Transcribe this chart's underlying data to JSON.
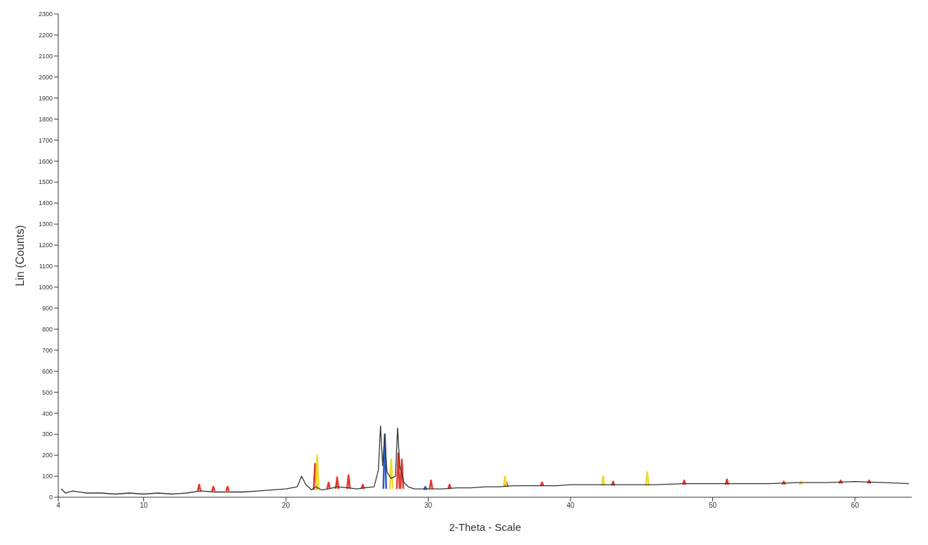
{
  "chart_data": {
    "type": "line",
    "xlabel": "2-Theta - Scale",
    "ylabel": "Lin (Counts)",
    "xlim": [
      4,
      64
    ],
    "ylim": [
      0,
      2300
    ],
    "xticks": [
      4,
      10,
      20,
      30,
      40,
      50,
      60
    ],
    "yticks": [
      0,
      100,
      200,
      300,
      400,
      500,
      600,
      700,
      800,
      900,
      1000,
      1100,
      1200,
      1300,
      1400,
      1500,
      1600,
      1700,
      1800,
      1900,
      2000,
      2100,
      2200,
      2300
    ],
    "grid": false,
    "legend": false,
    "marker": "none",
    "line_style": "solid",
    "series": [
      {
        "color": "#e8382c",
        "x": [
          13.8,
          13.9,
          14.0,
          14.05,
          14.8,
          14.9,
          15.0,
          15.05,
          15.8,
          15.9,
          16.0,
          16.05,
          21.95,
          22.05,
          22.15,
          22.2,
          22.9,
          23.0,
          23.1,
          23.15,
          23.5,
          23.6,
          23.7,
          23.75,
          24.3,
          24.4,
          24.5,
          24.55,
          25.3,
          25.4,
          25.5,
          25.55,
          27.8,
          27.9,
          28.0,
          28.02,
          28.05,
          28.15,
          28.25,
          28.3,
          30.1,
          30.2,
          30.3,
          30.35,
          31.4,
          31.5,
          31.6,
          31.65,
          35.4,
          35.5,
          35.6,
          35.65,
          37.9,
          38,
          38.1,
          38.15,
          42.9,
          43,
          43.1,
          43.15,
          47.9,
          48,
          48.1,
          48.15,
          50.9,
          51,
          51.1,
          51.15,
          54.9,
          55,
          55.1,
          55.15,
          58.9,
          59,
          59.1,
          59.15,
          60.9,
          61,
          61.1
        ],
        "values": [
          30,
          60,
          30,
          null,
          30,
          50,
          30,
          null,
          30,
          50,
          30,
          null,
          35,
          160,
          35,
          null,
          40,
          70,
          40,
          null,
          40,
          95,
          40,
          null,
          40,
          105,
          40,
          null,
          40,
          60,
          40,
          null,
          40,
          210,
          40,
          null,
          40,
          180,
          40,
          null,
          40,
          80,
          40,
          null,
          40,
          60,
          40,
          null,
          50,
          70,
          50,
          null,
          55,
          70,
          55,
          null,
          55,
          75,
          55,
          null,
          60,
          80,
          60,
          null,
          60,
          85,
          60,
          null,
          60,
          75,
          60,
          null,
          65,
          80,
          65,
          null,
          65,
          80,
          65
        ]
      },
      {
        "color": "#f2d82a",
        "x": [
          22.1,
          22.2,
          22.3,
          22.35,
          27.3,
          27.4,
          27.5,
          27.55,
          35.3,
          35.4,
          35.5,
          35.55,
          42.2,
          42.3,
          42.4,
          42.45,
          45.3,
          45.4,
          45.5,
          45.55,
          56.1,
          56.2,
          56.3
        ],
        "values": [
          35,
          200,
          35,
          null,
          40,
          180,
          40,
          null,
          50,
          100,
          50,
          null,
          55,
          100,
          55,
          null,
          55,
          120,
          55,
          null,
          60,
          75,
          60
        ]
      },
      {
        "color": "#2a5cc8",
        "x": [
          26.85,
          26.95,
          27.05,
          27.1,
          29.7,
          29.8,
          29.9
        ],
        "values": [
          40,
          300,
          40,
          null,
          35,
          50,
          35
        ]
      },
      {
        "color": "#333333",
        "x": [
          4.2,
          4.5,
          5.0,
          5.5,
          6,
          7,
          8,
          9,
          10,
          11,
          12,
          13,
          14,
          15,
          16,
          17,
          18,
          19,
          20,
          20.8,
          21.1,
          21.4,
          21.8,
          22.1,
          22.5,
          23.0,
          23.6,
          24.4,
          25,
          25.5,
          26.2,
          26.5,
          26.65,
          26.8,
          26.95,
          27.1,
          27.4,
          27.7,
          27.85,
          28.0,
          28.3,
          28.6,
          29,
          30,
          31,
          32,
          33,
          34,
          35,
          36,
          37,
          38,
          39,
          40,
          42,
          44,
          46,
          48,
          50,
          52,
          54,
          56,
          58,
          60,
          62,
          63.8
        ],
        "values": [
          40,
          20,
          30,
          25,
          20,
          20,
          15,
          20,
          15,
          20,
          15,
          20,
          30,
          25,
          25,
          25,
          30,
          35,
          40,
          50,
          100,
          60,
          35,
          50,
          35,
          40,
          50,
          45,
          40,
          45,
          50,
          130,
          340,
          150,
          300,
          120,
          90,
          100,
          330,
          150,
          70,
          50,
          40,
          40,
          40,
          45,
          45,
          50,
          50,
          55,
          55,
          55,
          55,
          60,
          60,
          60,
          60,
          65,
          65,
          65,
          65,
          70,
          70,
          75,
          70,
          65
        ]
      }
    ]
  }
}
